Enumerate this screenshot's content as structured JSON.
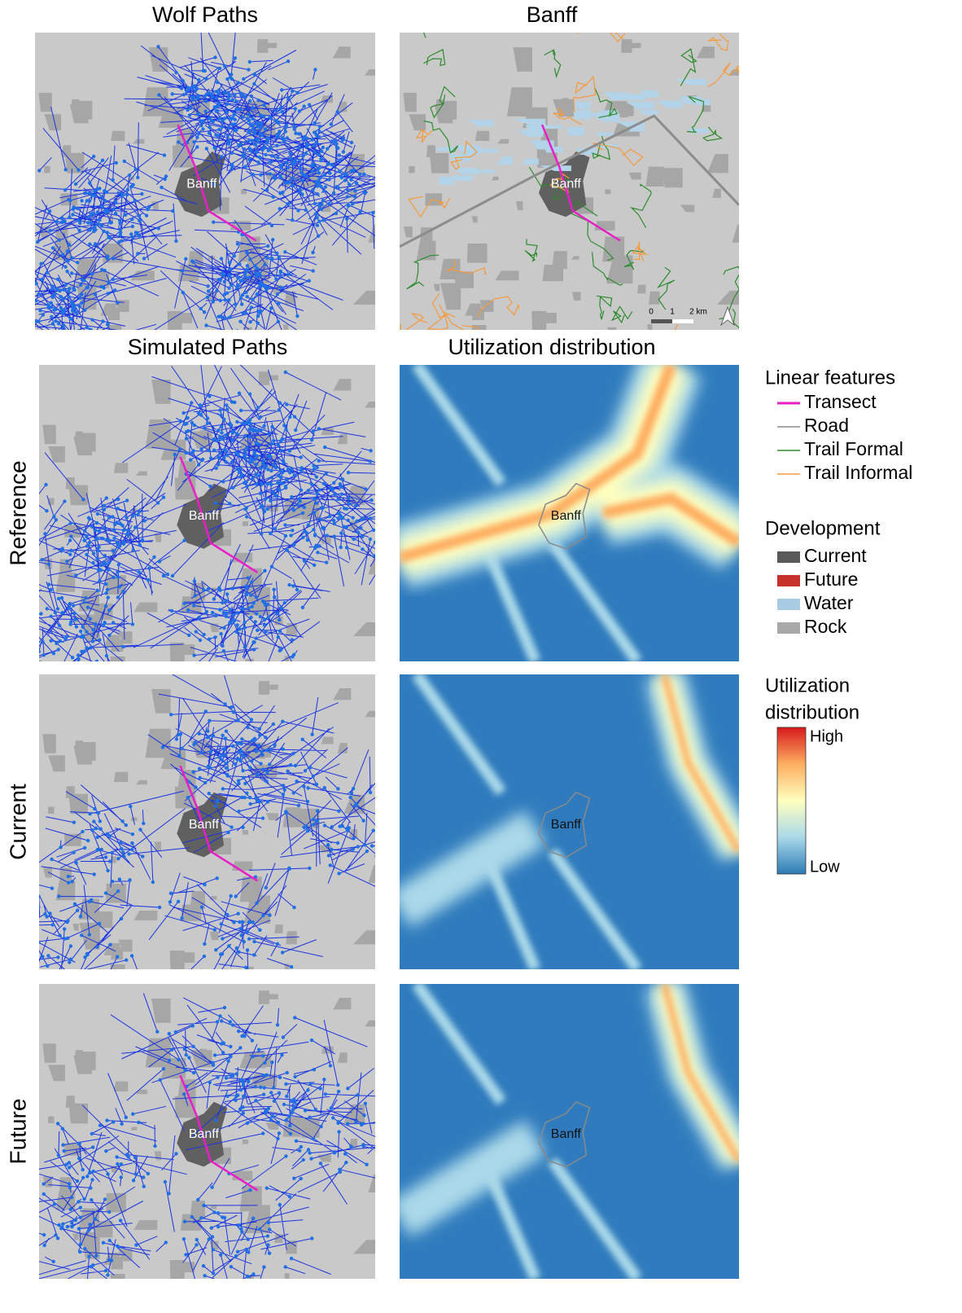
{
  "headers": [
    "Wolf Paths",
    "Banff",
    "Simulated Paths",
    "Utilization distribution"
  ],
  "row_labels": [
    "Reference",
    "Current",
    "Future"
  ],
  "place_labels": [
    "Banff",
    "Banff",
    "Banff",
    "Banff",
    "Banff",
    "Banff",
    "Banff",
    "Banff"
  ],
  "scale_bar": [
    "0",
    "1",
    "2 km"
  ],
  "legend": {
    "linear_features": {
      "title": "Linear features",
      "items": [
        {
          "label": "Transect",
          "color": "#e81ec8"
        },
        {
          "label": "Road",
          "color": "#8c8c8c"
        },
        {
          "label": "Trail Formal",
          "color": "#2e8b2e"
        },
        {
          "label": "Trail Informal",
          "color": "#f59a3c"
        }
      ]
    },
    "development": {
      "title": "Development",
      "items": [
        {
          "label": "Current",
          "color": "#595959"
        },
        {
          "label": "Future",
          "color": "#c8322d"
        },
        {
          "label": "Water",
          "color": "#a8cce4"
        },
        {
          "label": "Rock",
          "color": "#a8a8a8"
        }
      ]
    },
    "utilization": {
      "title_lines": [
        "Utilization",
        "distribution"
      ],
      "high": "High",
      "low": "Low",
      "colors": [
        "#2c7bb6",
        "#abd9e9",
        "#ffffbf",
        "#fdae61",
        "#d7191c"
      ]
    }
  }
}
